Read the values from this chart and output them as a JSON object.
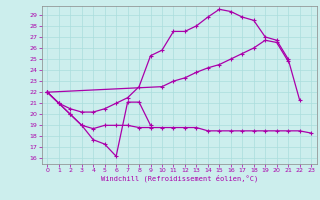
{
  "xlabel": "Windchill (Refroidissement éolien,°C)",
  "background_color": "#cceeed",
  "grid_color": "#aadddd",
  "line_color": "#aa00aa",
  "x_ticks": [
    0,
    1,
    2,
    3,
    4,
    5,
    6,
    7,
    8,
    9,
    10,
    11,
    12,
    13,
    14,
    15,
    16,
    17,
    18,
    19,
    20,
    21,
    22,
    23
  ],
  "y_ticks": [
    16,
    17,
    18,
    19,
    20,
    21,
    22,
    23,
    24,
    25,
    26,
    27,
    28,
    29
  ],
  "xlim": [
    -0.5,
    23.5
  ],
  "ylim": [
    15.5,
    29.8
  ],
  "line1_x": [
    0,
    1,
    2,
    3,
    4,
    5,
    6,
    7,
    8,
    9
  ],
  "line1_y": [
    22.0,
    21.0,
    20.0,
    19.0,
    17.7,
    17.3,
    16.2,
    21.1,
    21.1,
    19.0
  ],
  "line2_x": [
    0,
    1,
    2,
    3,
    4,
    5,
    6,
    7,
    8,
    9,
    10,
    11,
    12,
    13,
    14,
    15,
    16,
    17,
    18,
    19,
    20,
    21,
    22,
    23
  ],
  "line2_y": [
    22.0,
    21.0,
    20.0,
    19.0,
    18.7,
    19.0,
    19.0,
    19.0,
    18.8,
    18.8,
    18.8,
    18.8,
    18.8,
    18.8,
    18.5,
    18.5,
    18.5,
    18.5,
    18.5,
    18.5,
    18.5,
    18.5,
    18.5,
    18.3
  ],
  "line3_x": [
    0,
    1,
    2,
    3,
    4,
    5,
    6,
    7,
    8,
    9,
    10,
    11,
    12,
    13,
    14,
    15,
    16,
    17,
    18,
    19,
    20,
    21,
    22
  ],
  "line3_y": [
    22.0,
    21.0,
    20.5,
    20.2,
    20.2,
    20.5,
    21.0,
    21.5,
    22.5,
    25.3,
    25.8,
    27.5,
    27.5,
    28.0,
    28.8,
    29.5,
    29.3,
    28.8,
    28.5,
    27.0,
    26.7,
    25.0,
    21.3
  ],
  "line4_x": [
    0,
    10,
    11,
    12,
    13,
    14,
    15,
    16,
    17,
    18,
    19,
    20,
    21
  ],
  "line4_y": [
    22.0,
    22.5,
    23.0,
    23.3,
    23.8,
    24.2,
    24.5,
    25.0,
    25.5,
    26.0,
    26.7,
    26.5,
    24.8
  ]
}
